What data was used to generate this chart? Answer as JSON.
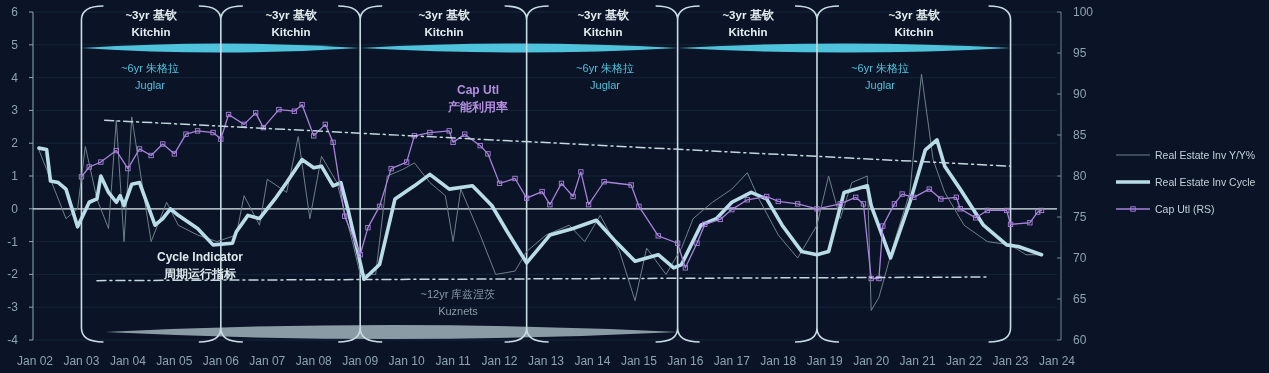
{
  "chart_data": {
    "type": "line",
    "xlim": [
      "2002-01",
      "2024-01"
    ],
    "xticks": [
      {
        "value": "2002-01",
        "label": "Jan 02"
      },
      {
        "value": "2003-01",
        "label": "Jan 03"
      },
      {
        "value": "2004-01",
        "label": "Jan 04"
      },
      {
        "value": "2005-01",
        "label": "Jan 05"
      },
      {
        "value": "2006-01",
        "label": "Jan 06"
      },
      {
        "value": "2007-01",
        "label": "Jan 07"
      },
      {
        "value": "2008-01",
        "label": "Jan 08"
      },
      {
        "value": "2009-01",
        "label": "Jan 09"
      },
      {
        "value": "2010-01",
        "label": "Jan 10"
      },
      {
        "value": "2011-01",
        "label": "Jan 11"
      },
      {
        "value": "2012-01",
        "label": "Jan 12"
      },
      {
        "value": "2013-01",
        "label": "Jan 13"
      },
      {
        "value": "2014-01",
        "label": "Jan 14"
      },
      {
        "value": "2015-01",
        "label": "Jan 15"
      },
      {
        "value": "2016-01",
        "label": "Jan 16"
      },
      {
        "value": "2017-01",
        "label": "Jan 17"
      },
      {
        "value": "2018-01",
        "label": "Jan 18"
      },
      {
        "value": "2019-01",
        "label": "Jan 19"
      },
      {
        "value": "2020-01",
        "label": "Jan 20"
      },
      {
        "value": "2021-01",
        "label": "Jan 21"
      },
      {
        "value": "2022-01",
        "label": "Jan 22"
      },
      {
        "value": "2023-01",
        "label": "Jan 23"
      },
      {
        "value": "2024-01",
        "label": "Jan 24"
      }
    ],
    "ylim": [
      -4,
      6
    ],
    "yticks": [
      -4,
      -3,
      -2,
      -1,
      0,
      1,
      2,
      3,
      4,
      5,
      6
    ],
    "y2lim": [
      60,
      100
    ],
    "y2ticks": [
      60,
      65,
      70,
      75,
      80,
      85,
      90,
      95,
      100
    ],
    "grid": "y",
    "legend": "right",
    "series": [
      {
        "name": "Real Estate Inv Y/Y%",
        "color": "#6f8088",
        "x": [
          "2002-02",
          "2002-07",
          "2002-09",
          "2002-12",
          "2003-02",
          "2003-05",
          "2003-08",
          "2003-10",
          "2003-12",
          "2004-02",
          "2004-05",
          "2004-07",
          "2004-11",
          "2005-02",
          "2005-07",
          "2005-12",
          "2006-05",
          "2006-07",
          "2006-11",
          "2007-01",
          "2007-06",
          "2007-09",
          "2007-12",
          "2008-03",
          "2008-07",
          "2008-11",
          "2009-01",
          "2009-05",
          "2009-08",
          "2009-12",
          "2010-03",
          "2010-07",
          "2010-11",
          "2011-01",
          "2011-03",
          "2011-08",
          "2011-12",
          "2012-05",
          "2012-08",
          "2013-01",
          "2013-07",
          "2013-11",
          "2014-03",
          "2014-08",
          "2014-12",
          "2015-03",
          "2015-08",
          "2015-12",
          "2016-03",
          "2016-08",
          "2017-01",
          "2017-05",
          "2017-08",
          "2018-01",
          "2018-06",
          "2018-11",
          "2019-02",
          "2019-05",
          "2019-08",
          "2019-12",
          "2020-01",
          "2020-03",
          "2020-07",
          "2020-11",
          "2021-01",
          "2021-02",
          "2021-05",
          "2021-08",
          "2022-01",
          "2022-07",
          "2023-01",
          "2023-05",
          "2023-09"
        ],
        "values": [
          1.8,
          0.3,
          -0.3,
          0.0,
          1.9,
          0.3,
          -0.6,
          2.7,
          -1.0,
          2.8,
          0.5,
          -1.0,
          0.2,
          -0.5,
          -0.8,
          -1.0,
          -0.8,
          0.4,
          -0.5,
          0.9,
          0.5,
          2.2,
          -0.3,
          1.6,
          0.8,
          -1.0,
          -2.0,
          -2.0,
          1.0,
          1.2,
          1.4,
          0.8,
          0.4,
          -1.0,
          0.6,
          -0.8,
          -2.0,
          -1.9,
          -1.3,
          -0.8,
          -0.5,
          -1.0,
          -0.2,
          -1.3,
          -2.8,
          -1.2,
          -2.0,
          -1.2,
          -0.3,
          0.2,
          0.6,
          1.1,
          0.3,
          -0.8,
          -1.5,
          -0.5,
          1.0,
          -0.3,
          0.8,
          1.0,
          -3.1,
          -2.7,
          -1.0,
          0.5,
          3.0,
          4.1,
          1.5,
          0.5,
          -0.5,
          -1.0,
          -1.1,
          -1.4,
          -1.4
        ]
      },
      {
        "name": "Real Estate Inv Cycle",
        "color": "#b9dde8",
        "x": [
          "2002-02",
          "2002-04",
          "2002-05",
          "2002-07",
          "2002-09",
          "2002-12",
          "2003-03",
          "2003-05",
          "2003-06",
          "2003-08",
          "2003-10",
          "2003-11",
          "2003-12",
          "2004-02",
          "2004-04",
          "2004-08",
          "2004-10",
          "2004-12",
          "2005-02",
          "2005-07",
          "2005-11",
          "2006-04",
          "2006-05",
          "2006-08",
          "2006-11",
          "2007-03",
          "2007-06",
          "2007-10",
          "2008-01",
          "2008-03",
          "2008-06",
          "2008-08",
          "2008-10",
          "2009-02",
          "2009-06",
          "2009-10",
          "2010-03",
          "2010-07",
          "2010-12",
          "2011-06",
          "2011-11",
          "2012-03",
          "2012-08",
          "2013-02",
          "2013-08",
          "2014-02",
          "2014-07",
          "2014-12",
          "2015-06",
          "2015-10",
          "2015-12",
          "2016-05",
          "2016-09",
          "2017-01",
          "2017-06",
          "2017-10",
          "2018-02",
          "2018-07",
          "2018-11",
          "2019-02",
          "2019-06",
          "2019-12",
          "2020-01",
          "2020-06",
          "2020-11",
          "2021-03",
          "2021-06",
          "2021-08",
          "2021-12",
          "2022-06",
          "2022-12",
          "2023-03",
          "2023-09"
        ],
        "values": [
          1.85,
          1.81,
          0.85,
          0.8,
          0.6,
          -0.55,
          0.2,
          0.3,
          1.0,
          0.5,
          0.2,
          0.4,
          0.1,
          0.75,
          0.8,
          -0.5,
          -0.3,
          0.0,
          -0.2,
          -0.6,
          -1.1,
          -1.05,
          -0.7,
          -0.2,
          -0.3,
          0.3,
          0.8,
          1.5,
          1.25,
          1.3,
          0.7,
          0.8,
          -0.1,
          -2.15,
          -1.7,
          0.3,
          0.7,
          1.05,
          0.6,
          0.7,
          0.1,
          -0.7,
          -1.65,
          -0.8,
          -0.6,
          -0.35,
          -1.0,
          -1.6,
          -1.4,
          -1.8,
          -1.7,
          -0.5,
          -0.3,
          0.2,
          0.5,
          0.3,
          -0.5,
          -1.3,
          -1.4,
          -1.3,
          0.5,
          0.7,
          0.1,
          -1.5,
          0.2,
          1.8,
          2.1,
          1.3,
          0.6,
          -0.5,
          -1.1,
          -1.15,
          -1.4
        ]
      },
      {
        "name": "Cap Utl (RS)",
        "color": "#a982dc",
        "axis": "y2",
        "marker": "square",
        "x": [
          "2003-01",
          "2003-03",
          "2003-06",
          "2003-10",
          "2004-01",
          "2004-04",
          "2004-07",
          "2004-10",
          "2005-01",
          "2005-04",
          "2005-07",
          "2005-11",
          "2006-01",
          "2006-03",
          "2006-07",
          "2006-10",
          "2006-12",
          "2007-04",
          "2007-08",
          "2007-10",
          "2008-01",
          "2008-04",
          "2008-06",
          "2008-09",
          "2009-01",
          "2009-03",
          "2009-06",
          "2009-09",
          "2010-01",
          "2010-03",
          "2010-07",
          "2010-12",
          "2011-01",
          "2011-04",
          "2011-08",
          "2011-10",
          "2012-01",
          "2012-05",
          "2012-08",
          "2012-12",
          "2013-02",
          "2013-05",
          "2013-08",
          "2013-10",
          "2013-12",
          "2014-04",
          "2014-11",
          "2015-01",
          "2015-06",
          "2015-11",
          "2016-01",
          "2016-04",
          "2016-06",
          "2016-10",
          "2017-01",
          "2017-05",
          "2017-10",
          "2018-01",
          "2018-06",
          "2018-11",
          "2019-05",
          "2019-09",
          "2019-11",
          "2020-01",
          "2020-03",
          "2020-04",
          "2020-07",
          "2020-09",
          "2020-12",
          "2021-04",
          "2021-07",
          "2021-11",
          "2021-12",
          "2022-04",
          "2022-07",
          "2022-12",
          "2023-01",
          "2023-06",
          "2023-08",
          "2023-09"
        ],
        "values": [
          79.9,
          81.1,
          81.7,
          83.1,
          80.9,
          83.3,
          82.5,
          83.9,
          82.7,
          85.1,
          85.5,
          85.3,
          84.5,
          87.5,
          86.3,
          87.7,
          85.9,
          88.1,
          87.9,
          88.7,
          84.9,
          86.3,
          84.1,
          75.1,
          70.4,
          73.7,
          76.3,
          80.9,
          81.7,
          84.9,
          85.3,
          85.5,
          84.1,
          85.1,
          83.7,
          82.7,
          79.1,
          79.7,
          77.3,
          78.1,
          76.5,
          79.1,
          77.5,
          80.5,
          76.5,
          79.3,
          78.9,
          76.3,
          72.7,
          71.8,
          68.8,
          71.8,
          74.1,
          74.7,
          75.9,
          77.1,
          77.5,
          76.9,
          76.6,
          76.0,
          76.6,
          77.4,
          76.6,
          67.5,
          67.5,
          73.9,
          76.6,
          77.8,
          77.4,
          78.4,
          77.2,
          77.4,
          76.0,
          74.9,
          75.8,
          75.8,
          74.1,
          74.3,
          75.6,
          75.8
        ]
      },
      {
        "type": "line",
        "color": "#c4d6de",
        "line_style": "dashed",
        "x": [
          "2003-07",
          "2023-01"
        ],
        "values": [
          2.7,
          1.3
        ]
      },
      {
        "type": "line",
        "color": "#c4d6de",
        "line_style": "dashed",
        "x": [
          "2003-05",
          "2022-07"
        ],
        "values": [
          -2.19,
          -2.08
        ]
      }
    ],
    "ref_lines": [
      {
        "axis": "y",
        "value": 0,
        "color": "#dfe9ee"
      },
      {
        "axis": "x",
        "value": "2003-01",
        "color": "#c9dce4"
      },
      {
        "axis": "x",
        "value": "2006-01",
        "color": "#c9dce4"
      },
      {
        "axis": "x",
        "value": "2009-01",
        "color": "#c9dce4"
      },
      {
        "axis": "x",
        "value": "2012-08",
        "color": "#c9dce4"
      },
      {
        "axis": "x",
        "value": "2015-11",
        "color": "#c9dce4"
      },
      {
        "axis": "x",
        "value": "2018-11",
        "color": "#c9dce4"
      },
      {
        "axis": "x",
        "value": "2023-01",
        "color": "#c9dce4"
      }
    ],
    "annotations": [
      "~3yr 基钦\nKitchin",
      "~3yr 基钦\nKitchin",
      "~3yr 基钦\nKitchin",
      "~3yr 基钦\nKitchin",
      "~3yr 基钦\nKitchin",
      "~3yr 基钦\nKitchin",
      "~6yr 朱格拉\nJuglar",
      "~6yr 朱格拉\nJuglar",
      "~6yr 朱格拉\nJuglar",
      "~12yr 库兹涅茨\nKuznets",
      "Cycle Indicator\n周期运行指标",
      "Cap Utl\n产能利用率"
    ]
  }
}
